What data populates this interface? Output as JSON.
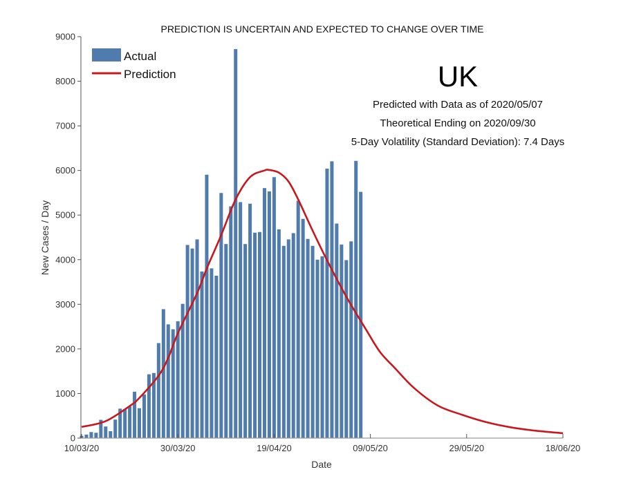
{
  "chart_data": {
    "type": "bar",
    "title": "PREDICTION IS UNCERTAIN AND EXPECTED TO CHANGE OVER TIME",
    "xlabel": "Date",
    "ylabel": "New Cases / Day",
    "ylim": [
      0,
      9000
    ],
    "xlim_days_from_start": [
      0,
      100
    ],
    "start_date": "10/03/20",
    "yticks": [
      0,
      1000,
      2000,
      3000,
      4000,
      5000,
      6000,
      7000,
      8000,
      9000
    ],
    "xticks": [
      {
        "day": 0,
        "label": "10/03/20"
      },
      {
        "day": 20,
        "label": "30/03/20"
      },
      {
        "day": 40,
        "label": "19/04/20"
      },
      {
        "day": 60,
        "label": "09/05/20"
      },
      {
        "day": 80,
        "label": "29/05/20"
      },
      {
        "day": 100,
        "label": "18/06/20"
      }
    ],
    "grid": false,
    "legend": {
      "position": "top-left",
      "entries": [
        {
          "label": "Actual",
          "kind": "bar"
        },
        {
          "label": "Prediction",
          "kind": "line"
        }
      ]
    },
    "series": [
      {
        "name": "Actual",
        "type": "bar",
        "x_days": [
          0,
          1,
          2,
          3,
          4,
          5,
          6,
          7,
          8,
          9,
          10,
          11,
          12,
          13,
          14,
          15,
          16,
          17,
          18,
          19,
          20,
          21,
          22,
          23,
          24,
          25,
          26,
          27,
          28,
          29,
          30,
          31,
          32,
          33,
          34,
          35,
          36,
          37,
          38,
          39,
          40,
          41,
          42,
          43,
          44,
          45,
          46,
          47,
          48,
          49,
          50,
          51,
          52,
          53,
          54,
          55,
          56,
          57,
          58
        ],
        "values": [
          50,
          80,
          135,
          120,
          410,
          260,
          155,
          415,
          660,
          650,
          710,
          1040,
          670,
          980,
          1430,
          1460,
          2130,
          2890,
          2550,
          2440,
          2620,
          3010,
          4330,
          4250,
          4455,
          3735,
          5905,
          3805,
          3640,
          5495,
          4350,
          5195,
          8720,
          5290,
          4350,
          5255,
          4605,
          4620,
          5605,
          5530,
          5850,
          4680,
          4310,
          4455,
          4595,
          5320,
          4915,
          4465,
          4310,
          4000,
          4075,
          6040,
          6205,
          4810,
          4340,
          3990,
          4410,
          6215,
          5520
        ]
      },
      {
        "name": "Prediction",
        "type": "line",
        "x_days": [
          0,
          5,
          10,
          12,
          16,
          18,
          20,
          24,
          26,
          29,
          32,
          35,
          38,
          39,
          41,
          43,
          45,
          48,
          51,
          55,
          59,
          62,
          65,
          69,
          74,
          79,
          84,
          89,
          94,
          100
        ],
        "values": [
          250,
          380,
          720,
          900,
          1400,
          1800,
          2350,
          3250,
          3800,
          4550,
          5350,
          5850,
          6000,
          6010,
          5950,
          5750,
          5350,
          4650,
          3985,
          3170,
          2450,
          1930,
          1580,
          1130,
          730,
          525,
          360,
          245,
          170,
          110
        ]
      }
    ],
    "annotations": {
      "region": "UK",
      "lines": [
        "Predicted with Data as of 2020/05/07",
        "Theoretical Ending on 2020/09/30",
        "5-Day Volatility (Standard Deviation): 7.4 Days"
      ]
    },
    "colors": {
      "bar": "#4f7cac",
      "line": "#c8181e",
      "axis": "#555555"
    }
  }
}
